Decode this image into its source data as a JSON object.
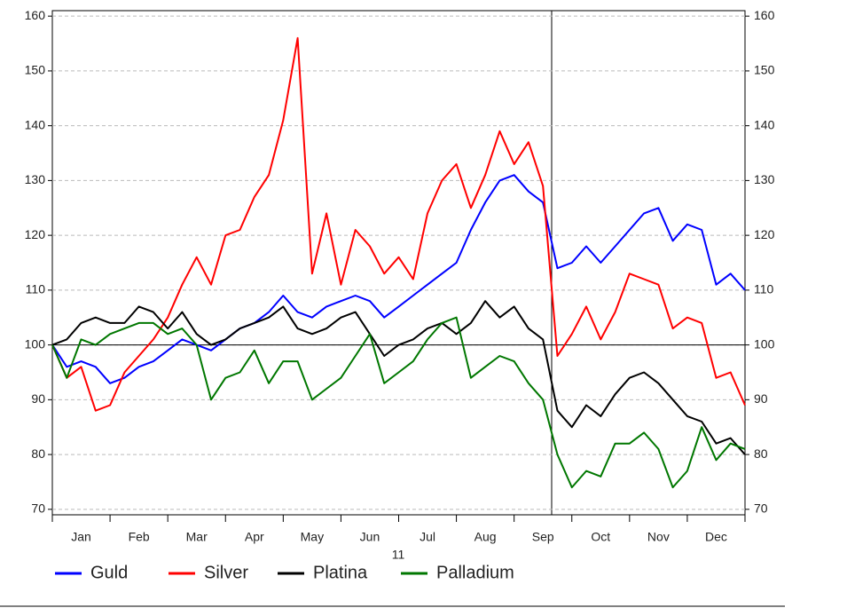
{
  "chart_data": {
    "type": "line",
    "categories": [
      null,
      null,
      "Jan",
      null,
      null,
      null,
      "Feb",
      null,
      null,
      null,
      "Mar",
      null,
      null,
      null,
      "Apr",
      null,
      null,
      null,
      "May",
      null,
      null,
      null,
      "Jun",
      null,
      null,
      null,
      "Jul",
      null,
      null,
      null,
      "Aug",
      null,
      null,
      null,
      "Sep",
      null,
      null,
      null,
      "Oct",
      null,
      null,
      null,
      "Nov",
      null,
      null,
      null,
      "Dec",
      null,
      null
    ],
    "xlabel": "11",
    "series": [
      {
        "name": "Guld",
        "color": "#0000ff",
        "values": [
          100,
          96,
          97,
          96,
          93,
          94,
          96,
          97,
          99,
          101,
          100,
          99,
          101,
          103,
          104,
          106,
          109,
          106,
          105,
          107,
          108,
          109,
          108,
          105,
          107,
          109,
          111,
          113,
          115,
          121,
          126,
          130,
          131,
          128,
          126,
          114,
          115,
          118,
          115,
          118,
          121,
          124,
          125,
          119,
          122,
          121,
          111,
          113,
          110
        ]
      },
      {
        "name": "Silver",
        "color": "#ff0000",
        "values": [
          100,
          94,
          96,
          88,
          89,
          95,
          98,
          101,
          105,
          111,
          116,
          111,
          120,
          121,
          127,
          131,
          141,
          156,
          113,
          124,
          111,
          121,
          118,
          113,
          116,
          112,
          124,
          130,
          133,
          125,
          131,
          139,
          133,
          137,
          129,
          98,
          102,
          107,
          101,
          106,
          113,
          112,
          111,
          103,
          105,
          104,
          94,
          95,
          89
        ]
      },
      {
        "name": "Platina",
        "color": "#000000",
        "values": [
          100,
          101,
          104,
          105,
          104,
          104,
          107,
          106,
          103,
          106,
          102,
          100,
          101,
          103,
          104,
          105,
          107,
          103,
          102,
          103,
          105,
          106,
          102,
          98,
          100,
          101,
          103,
          104,
          102,
          104,
          108,
          105,
          107,
          103,
          101,
          88,
          85,
          89,
          87,
          91,
          94,
          95,
          93,
          90,
          87,
          86,
          82,
          83,
          80
        ]
      },
      {
        "name": "Palladium",
        "color": "#007700",
        "values": [
          100,
          94,
          101,
          100,
          102,
          103,
          104,
          104,
          102,
          103,
          100,
          90,
          94,
          95,
          99,
          93,
          97,
          97,
          90,
          92,
          94,
          98,
          102,
          93,
          95,
          97,
          101,
          104,
          105,
          94,
          96,
          98,
          97,
          93,
          90,
          80,
          74,
          77,
          76,
          82,
          82,
          84,
          81,
          74,
          77,
          85,
          79,
          82,
          81
        ]
      }
    ],
    "ylim": [
      69,
      161
    ],
    "yticks": [
      70,
      80,
      90,
      100,
      110,
      120,
      130,
      140,
      150,
      160
    ],
    "y2lim": [
      69,
      161
    ],
    "y2ticks": [
      70,
      80,
      90,
      100,
      110,
      120,
      130,
      140,
      150,
      160
    ],
    "hline": 100,
    "grid": true
  }
}
